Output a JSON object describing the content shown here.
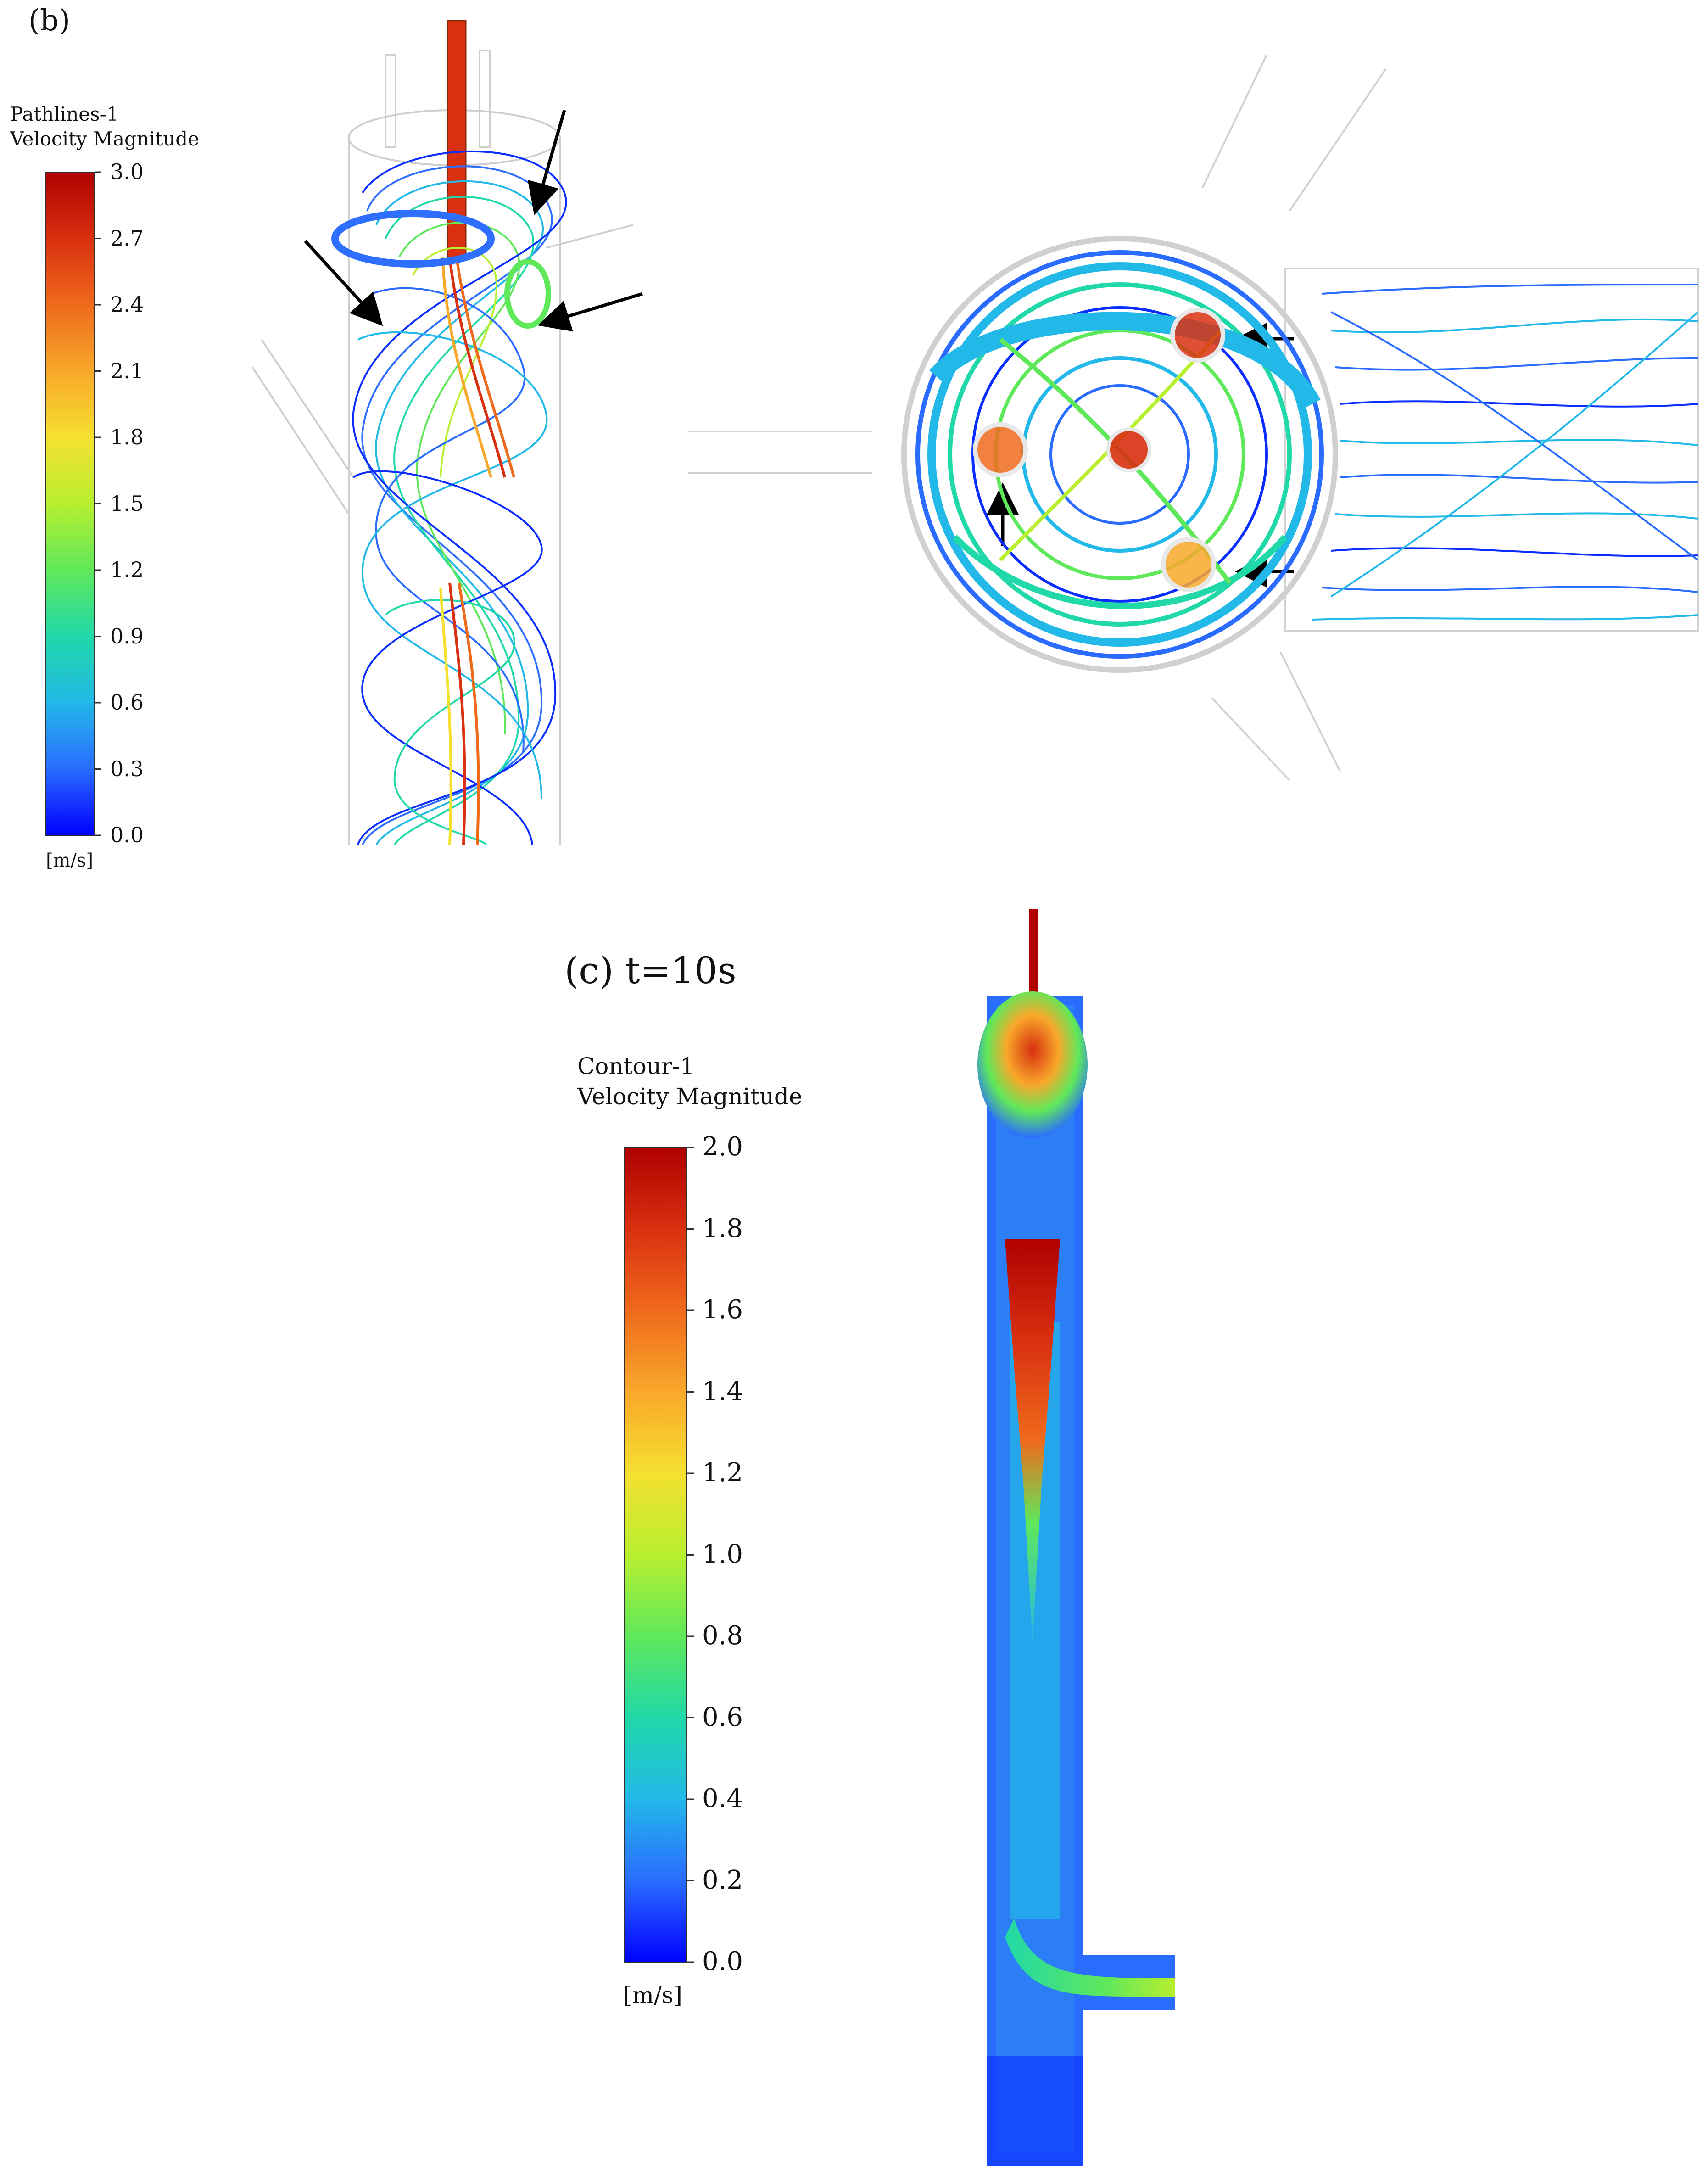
{
  "panel_b": {
    "label": "(b)",
    "legend": {
      "title_line1": "Pathlines-1",
      "title_line2": "Velocity Magnitude",
      "unit": "[m/s]",
      "ticks": [
        "3.0",
        "2.7",
        "2.4",
        "2.1",
        "1.8",
        "1.5",
        "1.2",
        "0.9",
        "0.6",
        "0.3",
        "0.0"
      ],
      "range": [
        0.0,
        3.0
      ]
    }
  },
  "panel_c": {
    "label": "(c) t=10s",
    "legend": {
      "title_line1": "Contour-1",
      "title_line2": "Velocity Magnitude",
      "unit": "[m/s]",
      "ticks": [
        "2.0",
        "1.8",
        "1.6",
        "1.4",
        "1.2",
        "1.0",
        "0.8",
        "0.6",
        "0.4",
        "0.2",
        "0.0"
      ],
      "range": [
        0.0,
        2.0
      ]
    }
  },
  "colormap": [
    "#0000ff",
    "#2a6cff",
    "#22b8e8",
    "#20d8a8",
    "#5fe85a",
    "#b8ef2f",
    "#f5e030",
    "#f8a82a",
    "#f06a1c",
    "#d83010",
    "#b00000"
  ]
}
